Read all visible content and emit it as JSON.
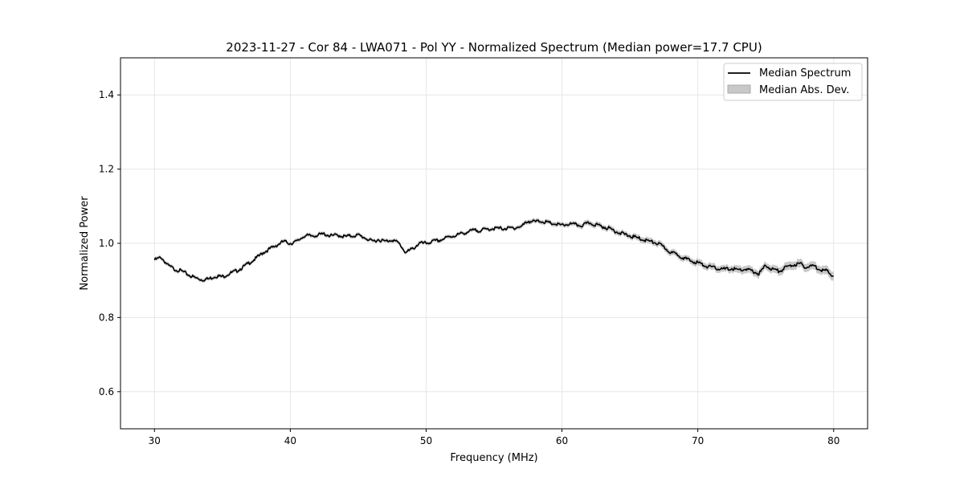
{
  "chart_data": {
    "type": "line",
    "title": "2023-11-27 - Cor 84 - LWA071 - Pol YY - Normalized Spectrum (Median power=17.7 CPU)",
    "xlabel": "Frequency (MHz)",
    "ylabel": "Normalized Power",
    "xlim": [
      27.5,
      82.5
    ],
    "ylim": [
      0.5,
      1.5
    ],
    "xticks": [
      30,
      40,
      50,
      60,
      70,
      80
    ],
    "yticks": [
      0.6,
      0.8,
      1.0,
      1.2,
      1.4
    ],
    "ytick_labels": [
      "0.6",
      "0.8",
      "1.0",
      "1.2",
      "1.4"
    ],
    "grid": true,
    "legend_position": "top-right",
    "legend": [
      "Median Spectrum",
      "Median Abs. Dev."
    ],
    "colors": {
      "line": "#000000",
      "band": "#c8c8c8",
      "grid": "#e6e6e6"
    },
    "x": [
      30,
      30.5,
      31,
      31.5,
      32,
      32.5,
      33,
      33.5,
      34,
      34.5,
      35,
      35.5,
      36,
      36.5,
      37,
      37.5,
      38,
      38.5,
      39,
      39.5,
      40,
      40.5,
      41,
      41.5,
      42,
      42.5,
      43,
      43.5,
      44,
      44.5,
      45,
      45.5,
      46,
      46.5,
      47,
      47.5,
      48,
      48.5,
      49,
      49.5,
      50,
      50.5,
      51,
      51.5,
      52,
      52.5,
      53,
      53.5,
      54,
      54.5,
      55,
      55.5,
      56,
      56.5,
      57,
      57.5,
      58,
      58.5,
      59,
      59.5,
      60,
      60.5,
      61,
      61.5,
      62,
      62.5,
      63,
      63.5,
      64,
      64.5,
      65,
      65.5,
      66,
      66.5,
      67,
      67.5,
      68,
      68.5,
      69,
      69.5,
      70,
      70.5,
      71,
      71.5,
      72,
      72.5,
      73,
      73.5,
      74,
      74.5,
      75,
      75.5,
      76,
      76.5,
      77,
      77.5,
      78,
      78.5,
      79,
      79.5,
      80
    ],
    "series": [
      {
        "name": "Median Spectrum",
        "values": [
          0.955,
          0.962,
          0.94,
          0.93,
          0.925,
          0.915,
          0.907,
          0.902,
          0.904,
          0.912,
          0.91,
          0.918,
          0.925,
          0.935,
          0.948,
          0.96,
          0.975,
          0.985,
          0.995,
          1.005,
          1.0,
          1.005,
          1.02,
          1.02,
          1.022,
          1.025,
          1.02,
          1.022,
          1.018,
          1.02,
          1.022,
          1.015,
          1.005,
          1.01,
          1.005,
          1.01,
          1.0,
          0.975,
          0.985,
          1.0,
          1.0,
          1.005,
          1.008,
          1.015,
          1.02,
          1.025,
          1.03,
          1.035,
          1.035,
          1.038,
          1.04,
          1.04,
          1.04,
          1.042,
          1.045,
          1.06,
          1.058,
          1.06,
          1.055,
          1.052,
          1.048,
          1.052,
          1.05,
          1.048,
          1.055,
          1.05,
          1.045,
          1.04,
          1.032,
          1.025,
          1.02,
          1.015,
          1.01,
          1.005,
          1.0,
          0.99,
          0.975,
          0.97,
          0.96,
          0.952,
          0.948,
          0.94,
          0.935,
          0.932,
          0.93,
          0.932,
          0.928,
          0.93,
          0.925,
          0.918,
          0.94,
          0.93,
          0.925,
          0.935,
          0.942,
          0.945,
          0.935,
          0.94,
          0.93,
          0.925,
          0.912
        ]
      },
      {
        "name": "Median Abs. Dev.",
        "values": [
          0.005,
          0.005,
          0.005,
          0.005,
          0.005,
          0.005,
          0.005,
          0.005,
          0.005,
          0.005,
          0.005,
          0.005,
          0.005,
          0.005,
          0.005,
          0.005,
          0.005,
          0.005,
          0.005,
          0.005,
          0.005,
          0.005,
          0.005,
          0.005,
          0.005,
          0.005,
          0.005,
          0.005,
          0.005,
          0.005,
          0.005,
          0.005,
          0.005,
          0.005,
          0.005,
          0.005,
          0.005,
          0.005,
          0.005,
          0.005,
          0.005,
          0.005,
          0.005,
          0.005,
          0.005,
          0.005,
          0.005,
          0.005,
          0.005,
          0.005,
          0.005,
          0.005,
          0.005,
          0.005,
          0.006,
          0.006,
          0.006,
          0.006,
          0.006,
          0.006,
          0.006,
          0.006,
          0.006,
          0.007,
          0.007,
          0.007,
          0.007,
          0.007,
          0.007,
          0.007,
          0.007,
          0.008,
          0.008,
          0.008,
          0.008,
          0.008,
          0.008,
          0.008,
          0.008,
          0.008,
          0.009,
          0.009,
          0.009,
          0.009,
          0.009,
          0.009,
          0.01,
          0.01,
          0.01,
          0.01,
          0.01,
          0.01,
          0.011,
          0.011,
          0.011,
          0.011,
          0.011,
          0.011,
          0.011,
          0.012,
          0.012
        ]
      }
    ]
  }
}
